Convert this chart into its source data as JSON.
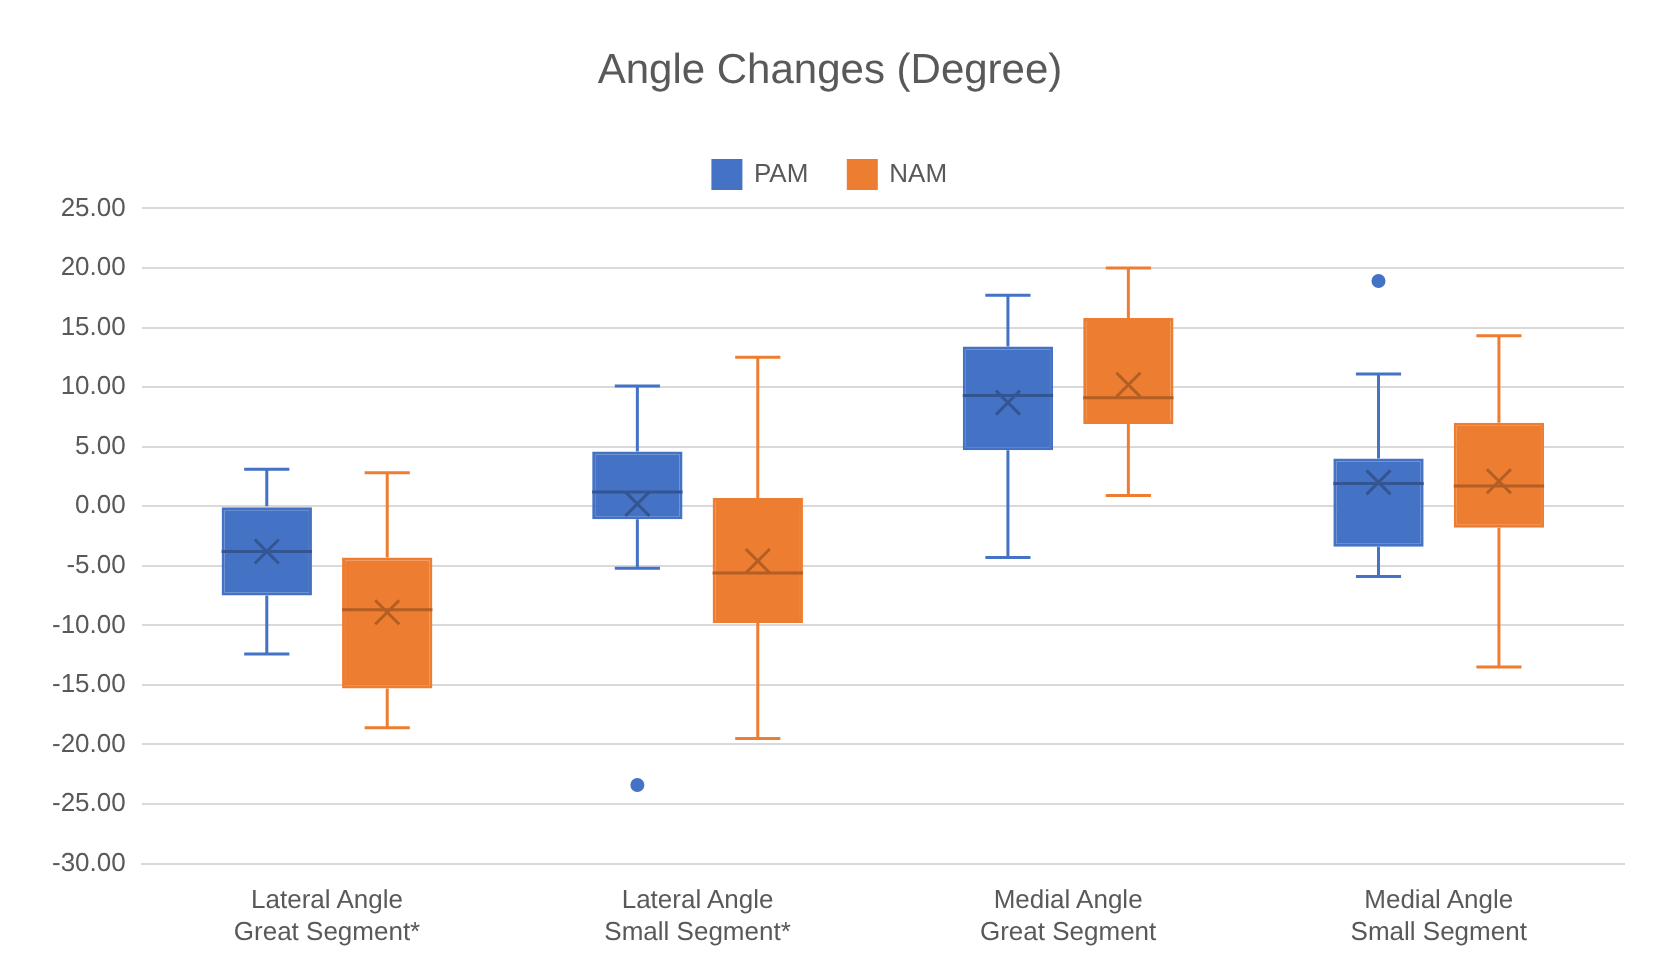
{
  "chart_data": {
    "type": "box",
    "title": "Angle Changes (Degree)",
    "categories": [
      "Lateral Angle Great Segment*",
      "Lateral Angle Small Segment*",
      "Medial Angle Great Segment",
      "Medial Angle Small Segment"
    ],
    "series": [
      {
        "name": "PAM",
        "color": "#4472c4",
        "boxes": [
          {
            "low": -12.4,
            "q1": -7.5,
            "median": -3.8,
            "q3": 0,
            "high": 3.1,
            "mean": -3.8
          },
          {
            "low": -5.2,
            "q1": -1.1,
            "median": 1.2,
            "q3": 4.6,
            "high": 10.1,
            "mean": 0.2,
            "outliers": [
              -23.4
            ]
          },
          {
            "low": -4.3,
            "q1": 4.7,
            "median": 9.3,
            "q3": 13.4,
            "high": 17.7,
            "mean": 8.7
          },
          {
            "low": -5.9,
            "q1": -3.4,
            "median": 1.9,
            "q3": 4.0,
            "high": 11.1,
            "mean": 2.0,
            "outliers": [
              18.9
            ]
          }
        ]
      },
      {
        "name": "NAM",
        "color": "#ed7d31",
        "boxes": [
          {
            "low": -18.6,
            "q1": -15.3,
            "median": -8.7,
            "q3": -4.3,
            "high": 2.8,
            "mean": -8.9
          },
          {
            "low": -19.5,
            "q1": -9.8,
            "median": -5.6,
            "q3": 0.7,
            "high": 12.5,
            "mean": -4.6
          },
          {
            "low": 0.9,
            "q1": 6.9,
            "median": 9.1,
            "q3": 15.8,
            "high": 20.0,
            "mean": 10.2
          },
          {
            "low": -13.5,
            "q1": -1.8,
            "median": 1.7,
            "q3": 7.0,
            "high": 14.3,
            "mean": 2.1
          }
        ]
      }
    ],
    "ylim": [
      -30,
      25
    ],
    "yticks": [
      {
        "value": -30,
        "label": "-30.00"
      },
      {
        "value": -25,
        "label": "-25.00"
      },
      {
        "value": -20,
        "label": "-20.00"
      },
      {
        "value": -15,
        "label": "-15.00"
      },
      {
        "value": -10,
        "label": "-10.00"
      },
      {
        "value": -5,
        "label": "-5.00"
      },
      {
        "value": 0,
        "label": "0.00"
      },
      {
        "value": 5,
        "label": "5.00"
      },
      {
        "value": 10,
        "label": "10.00"
      },
      {
        "value": 15,
        "label": "15.00"
      },
      {
        "value": 20,
        "label": "20.00"
      },
      {
        "value": 25,
        "label": "25.00"
      }
    ],
    "grid": "y",
    "legend": "top"
  }
}
